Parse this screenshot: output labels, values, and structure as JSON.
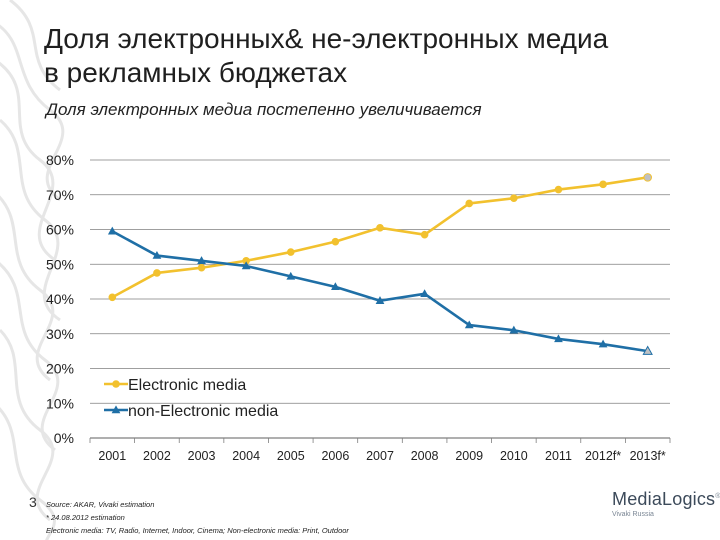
{
  "slide": {
    "title_line1": "Доля электронных& не-электронных медиа",
    "title_line2": "в рекламных бюджетах",
    "subtitle": "Доля электронных медиа постепенно увеличивается",
    "page_number": "3"
  },
  "footnotes": {
    "source": "Source: AKAR, Vivaki estimation",
    "estimation": "* 24.08.2012 estimation",
    "definition": "Electronic media: TV, Radio, Internet, Indoor, Cinema; Non-electronic media: Print, Outdoor"
  },
  "logo": {
    "name": "MediaLogics",
    "mark": "®",
    "sub": "Vivaki Russia"
  },
  "colors": {
    "electronic": "#f2c12e",
    "non_electronic": "#1f6fa6",
    "grid": "#7f7f7f",
    "marker_last": "#bfc0c2"
  },
  "chart_data": {
    "type": "line",
    "categories": [
      "2001",
      "2002",
      "2003",
      "2004",
      "2005",
      "2006",
      "2007",
      "2008",
      "2009",
      "2010",
      "2011",
      "2012f*",
      "2013f*"
    ],
    "y_ticks": [
      "0%",
      "10%",
      "20%",
      "30%",
      "40%",
      "50%",
      "60%",
      "70%",
      "80%"
    ],
    "ylim": [
      0,
      80
    ],
    "grid": true,
    "legend_position": "bottom-left",
    "series": [
      {
        "name": "Electronic media",
        "marker": "circle",
        "values": [
          40.5,
          47.5,
          49,
          51,
          53.5,
          56.5,
          60.5,
          58.5,
          67.5,
          69,
          71.5,
          73,
          75
        ]
      },
      {
        "name": "non-Electronic media",
        "marker": "triangle",
        "values": [
          59.5,
          52.5,
          51,
          49.5,
          46.5,
          43.5,
          39.5,
          41.5,
          32.5,
          31,
          28.5,
          27,
          25
        ]
      }
    ]
  }
}
